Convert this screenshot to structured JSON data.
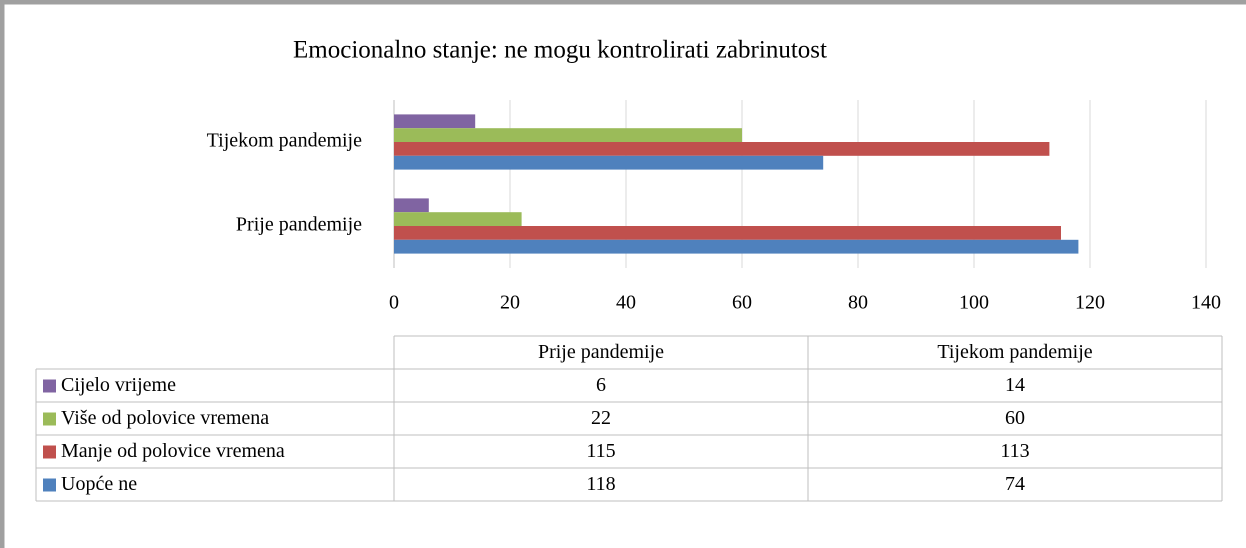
{
  "chart_data": {
    "type": "bar",
    "orientation": "horizontal",
    "title": "Emocionalno stanje: ne mogu kontrolirati zabrinutost",
    "categories": [
      "Prije pandemije",
      "Tijekom pandemije"
    ],
    "series": [
      {
        "name": "Cijelo vrijeme",
        "color": "#8064a2",
        "values": [
          6,
          14
        ]
      },
      {
        "name": "Više od polovice vremena",
        "color": "#9bbb59",
        "values": [
          22,
          60
        ]
      },
      {
        "name": "Manje od polovice vremena",
        "color": "#c0504d",
        "values": [
          115,
          113
        ]
      },
      {
        "name": "Uopće ne",
        "color": "#4f81bd",
        "values": [
          118,
          74
        ]
      }
    ],
    "xlim": [
      0,
      140
    ],
    "xticks": [
      0,
      20,
      40,
      60,
      80,
      100,
      120,
      140
    ],
    "grid": true,
    "data_table": true
  }
}
